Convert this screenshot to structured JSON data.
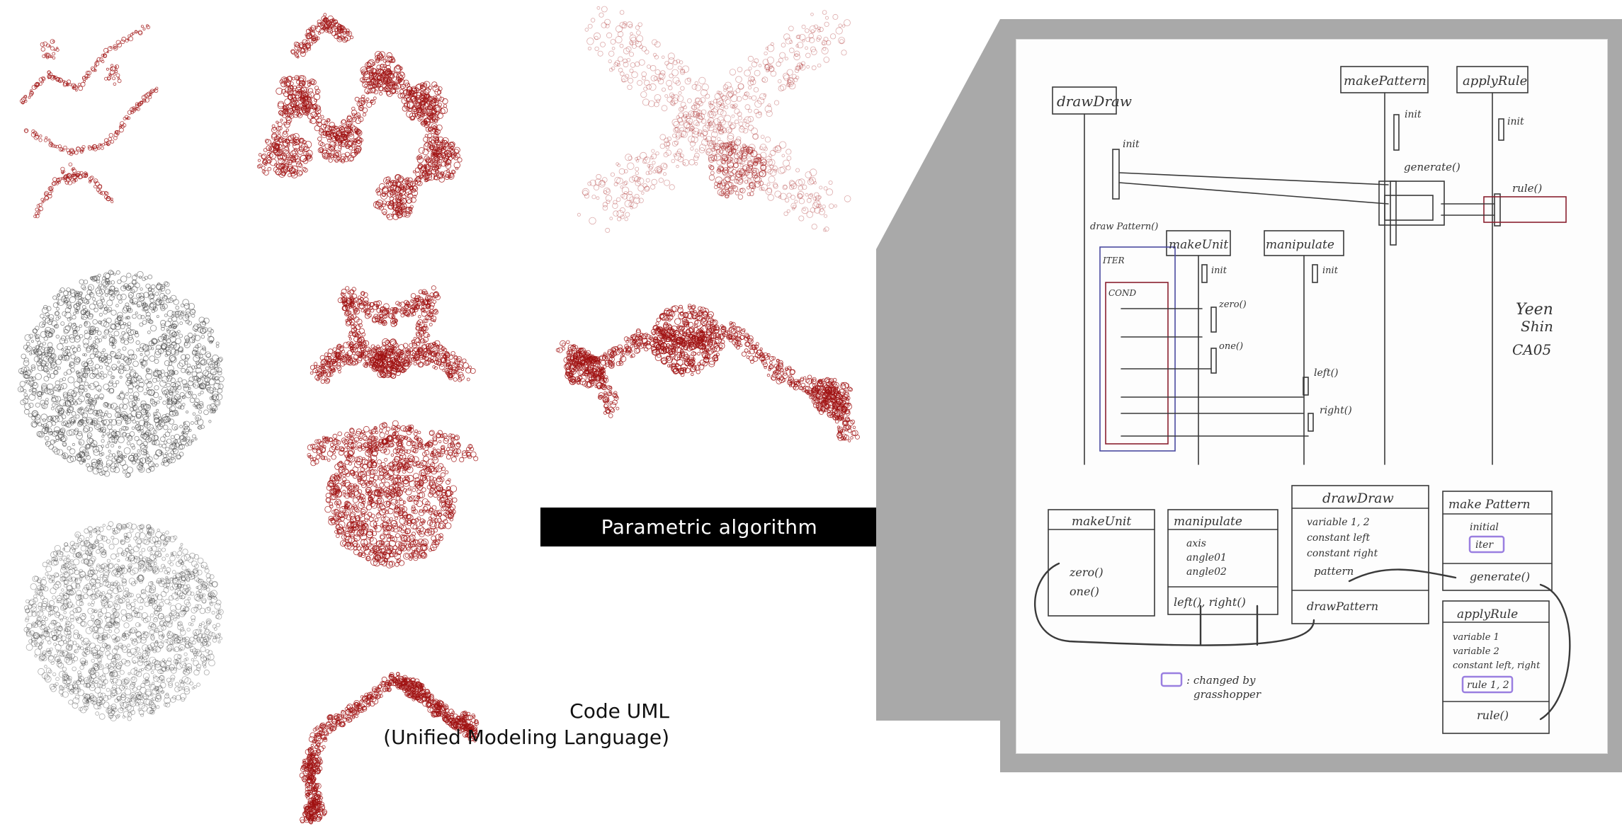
{
  "banner": {
    "label": "Parametric algorithm"
  },
  "caption": {
    "line1": "Code UML",
    "line2": "(Unified Modeling Language)"
  },
  "colors": {
    "fractal_red": "#a01212",
    "fractal_gray": "#333333",
    "callout_gray": "#a9a9a9",
    "banner": "#000000",
    "highlight_purple": "#9a7fe0"
  },
  "uml": {
    "sequence": {
      "lifelines": [
        "drawDraw",
        "makePattern",
        "applyRule",
        "makeUnit",
        "manipulate"
      ],
      "draw_pattern": "draw Pattern()",
      "init": "init",
      "generate": "generate()",
      "rule": "rule()",
      "iter": "ITER",
      "cond": "COND",
      "zero": "zero()",
      "one": "one()",
      "left": "left()",
      "right": "right()"
    },
    "author": {
      "line1": "Yeen",
      "line2": "Shin",
      "line3": "CA05"
    },
    "classes": {
      "makeUnit": {
        "name": "makeUnit",
        "methods": [
          "zero()",
          "one()"
        ]
      },
      "manipulate": {
        "name": "manipulate",
        "attrs": [
          "axis",
          "angle01",
          "angle02"
        ],
        "methods": "left(), right()"
      },
      "drawDraw": {
        "name": "drawDraw",
        "attrs": [
          "variable 1, 2",
          "constant left",
          "constant right",
          "pattern"
        ],
        "methods": "drawPattern"
      },
      "makePattern": {
        "name": "make Pattern",
        "attrs": [
          "initial",
          "iter"
        ],
        "methods": "generate()"
      },
      "applyRule": {
        "name": "applyRule",
        "attrs": [
          "variable 1",
          "variable 2",
          "constant left, right",
          "rule 1, 2"
        ],
        "methods": "rule()"
      }
    },
    "legend": {
      "line1": ": changed by",
      "line2": "grasshopper"
    }
  }
}
